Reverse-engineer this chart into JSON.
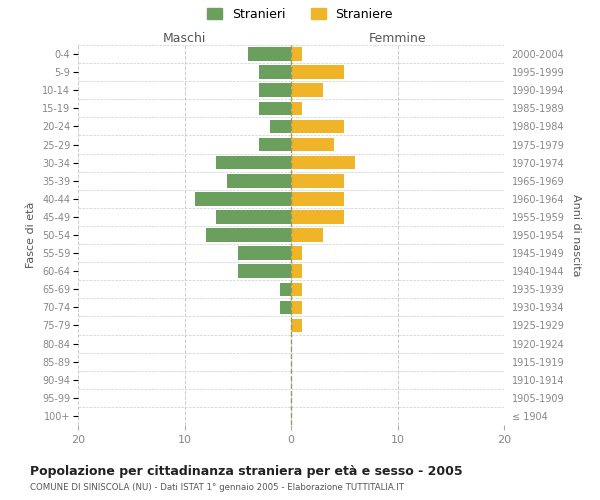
{
  "age_groups": [
    "0-4",
    "5-9",
    "10-14",
    "15-19",
    "20-24",
    "25-29",
    "30-34",
    "35-39",
    "40-44",
    "45-49",
    "50-54",
    "55-59",
    "60-64",
    "65-69",
    "70-74",
    "75-79",
    "80-84",
    "85-89",
    "90-94",
    "95-99",
    "100+"
  ],
  "birth_years": [
    "2000-2004",
    "1995-1999",
    "1990-1994",
    "1985-1989",
    "1980-1984",
    "1975-1979",
    "1970-1974",
    "1965-1969",
    "1960-1964",
    "1955-1959",
    "1950-1954",
    "1945-1949",
    "1940-1944",
    "1935-1939",
    "1930-1934",
    "1925-1929",
    "1920-1924",
    "1915-1919",
    "1910-1914",
    "1905-1909",
    "≤ 1904"
  ],
  "maschi": [
    4,
    3,
    3,
    3,
    2,
    3,
    7,
    6,
    9,
    7,
    8,
    5,
    5,
    1,
    1,
    0,
    0,
    0,
    0,
    0,
    0
  ],
  "femmine": [
    1,
    5,
    3,
    1,
    5,
    4,
    6,
    5,
    5,
    5,
    3,
    1,
    1,
    1,
    1,
    1,
    0,
    0,
    0,
    0,
    0
  ],
  "color_maschi": "#6a9f5e",
  "color_femmine": "#f0b429",
  "title": "Popolazione per cittadinanza straniera per età e sesso - 2005",
  "subtitle": "COMUNE DI SINISCOLA (NU) - Dati ISTAT 1° gennaio 2005 - Elaborazione TUTTITALIA.IT",
  "xlabel_left": "Maschi",
  "xlabel_right": "Femmine",
  "ylabel_left": "Fasce di età",
  "ylabel_right": "Anni di nascita",
  "legend_maschi": "Stranieri",
  "legend_femmine": "Straniere",
  "xlim": 20,
  "background_color": "#ffffff",
  "grid_color": "#cccccc"
}
